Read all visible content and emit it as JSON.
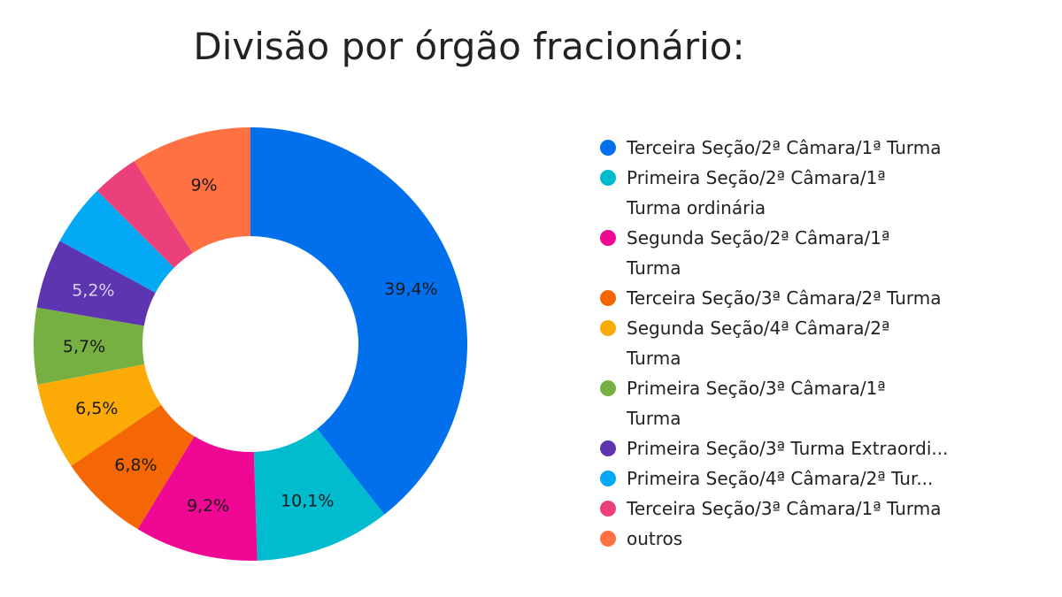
{
  "chart_data": {
    "type": "pie",
    "title": "Divisão por órgão fracionário:",
    "series": [
      {
        "name": "Terceira Seção/2ª Câmara/1ª Turma",
        "value": 39.4,
        "label": "39,4%",
        "color": "#0270ED"
      },
      {
        "name": "Primeira Seção/2ª Câmara/1ª Turma ordinária",
        "value": 10.1,
        "label": "10,1%",
        "color": "#01BBCE"
      },
      {
        "name": "Segunda Seção/2ª Câmara/1ª Turma",
        "value": 9.2,
        "label": "9,2%",
        "color": "#EE0893"
      },
      {
        "name": "Terceira Seção/3ª Câmara/2ª Turma",
        "value": 6.8,
        "label": "6,8%",
        "color": "#F56704"
      },
      {
        "name": "Segunda Seção/4ª Câmara/2ª Turma",
        "value": 6.5,
        "label": "6,5%",
        "color": "#FBAA06"
      },
      {
        "name": "Primeira Seção/3ª Câmara/1ª Turma",
        "value": 5.7,
        "label": "5,7%",
        "color": "#76B043"
      },
      {
        "name": "Primeira Seção/3ª Turma Extraordi...",
        "value": 5.2,
        "label": "5,2%",
        "color": "#5E35B1"
      },
      {
        "name": "Primeira Seção/4ª Câmara/2ª Tur...",
        "value": 4.6,
        "label": "",
        "color": "#03A9F4"
      },
      {
        "name": "Terceira Seção/3ª Câmara/1ª Turma",
        "value": 3.5,
        "label": "",
        "color": "#EC407A"
      },
      {
        "name": "outros",
        "value": 9.0,
        "label": "9%",
        "color": "#FF7043"
      }
    ],
    "legend_position": "right"
  }
}
